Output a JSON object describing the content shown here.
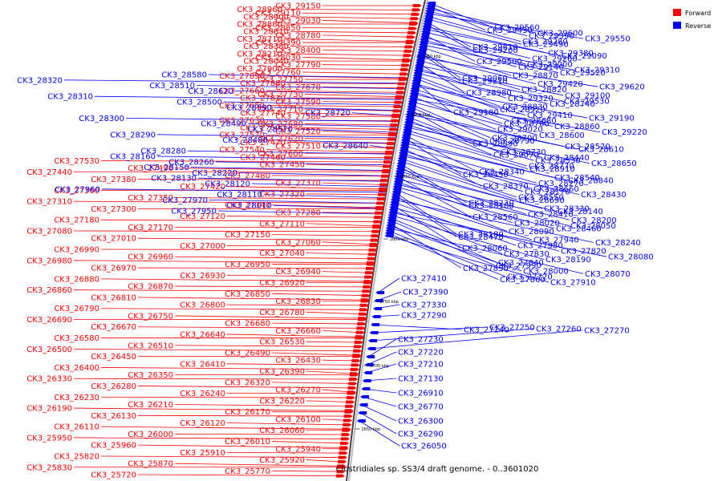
{
  "title": "Clostridiales sp. SS3/4 draft genome. - 0..3601020",
  "legend": {
    "forward": "Forward",
    "reverse": "Reverse"
  },
  "colors": {
    "forward": "#ff0000",
    "reverse": "#0000ff",
    "backbone": "#888888"
  },
  "ticks": [
    "2950 kbp",
    "2900 kbp",
    "2850 kbp",
    "2800 kbp",
    "2750 kbp",
    "2700 kbp",
    "2650 kbp"
  ],
  "forward_labels": [
    "CK3_29150",
    "CK3_28960",
    "CK3_29110",
    "CK3_28900",
    "CK3_29030",
    "CK3_28880",
    "CK3_28850",
    "CK3_28810",
    "CK3_28780",
    "CK3_28710",
    "CK3_28390",
    "CK3_28380",
    "CK3_28400",
    "CK3_28210",
    "CK3_28030",
    "CK3_28040",
    "CK3_27790",
    "CK3_27900",
    "CK3_27760",
    "CK3_27890",
    "CK3_27750",
    "CK3_27880",
    "CK3_27670",
    "CK3_27660",
    "CK3_27730",
    "CK3_27810",
    "CK3_27590",
    "CK3_27650",
    "CK3_27710",
    "CK3_27740",
    "CK3_27580",
    "CK3_27630",
    "CK3_27680",
    "CK3_27500",
    "CK3_27520",
    "CK3_27570",
    "CK3_27620",
    "CK3_27470",
    "CK3_27510",
    "CK3_27540",
    "CK3_27600",
    "CK3_27460",
    "CK3_27530",
    "CK3_27450",
    "CK3_27490",
    "CK3_27440",
    "CK3_27480",
    "CK3_27380",
    "CK3_27370",
    "CK3_27420",
    "CK3_27360",
    "CK3_27320",
    "CK3_27350",
    "CK3_27310",
    "CK3_27340",
    "CK3_27300",
    "CK3_27280",
    "CK3_27120",
    "CK3_27180",
    "CK3_27110",
    "CK3_27170",
    "CK3_27080",
    "CK3_27150",
    "CK3_27010",
    "CK3_27060",
    "CK3_27000",
    "CK3_26990",
    "CK3_27040",
    "CK3_26960",
    "CK3_26980",
    "CK3_26950",
    "CK3_26970",
    "CK3_26940",
    "CK3_26930",
    "CK3_26880",
    "CK3_26920",
    "CK3_26870",
    "CK3_26860",
    "CK3_26850",
    "CK3_26810",
    "CK3_26830",
    "CK3_26800",
    "CK3_26790",
    "CK3_26780",
    "CK3_26750",
    "CK3_26690",
    "CK3_26680",
    "CK3_26670",
    "CK3_26660",
    "CK3_26640",
    "CK3_26580",
    "CK3_26530",
    "CK3_26510",
    "CK3_26500",
    "CK3_26490",
    "CK3_26450",
    "CK3_26430",
    "CK3_26410",
    "CK3_26400",
    "CK3_26390",
    "CK3_26350",
    "CK3_26330",
    "CK3_26320",
    "CK3_26280",
    "CK3_26270",
    "CK3_26240",
    "CK3_26230",
    "CK3_26220",
    "CK3_26210",
    "CK3_26190",
    "CK3_26170",
    "CK3_26130",
    "CK3_26100",
    "CK3_26120",
    "CK3_26110",
    "CK3_26060",
    "CK3_26000",
    "CK3_25950",
    "CK3_26010",
    "CK3_25960",
    "CK3_25940",
    "CK3_25910",
    "CK3_25820",
    "CK3_25920",
    "CK3_25870",
    "CK3_25830",
    "CK3_25770",
    "CK3_25720"
  ],
  "reverse_labels": [
    "CK3_29560",
    "CK3_29430",
    "CK3_29600",
    "CK3_29390",
    "CK3_29550",
    "CK3_29280",
    "CK3_29490",
    "CK3_29610",
    "CK3_29200",
    "CK3_29380",
    "CK3_29090",
    "CK3_29260",
    "CK3_29500",
    "CK3_29000",
    "CK3_29140",
    "CK3_29310",
    "CK3_29520",
    "CK3_28870",
    "CK3_29060",
    "CK3_29210",
    "CK3_29420",
    "CK3_29620",
    "CK3_28820",
    "CK3_28980",
    "CK3_29100",
    "CK3_29320",
    "CK3_29530",
    "CK3_28740",
    "CK3_28830",
    "CK3_28920",
    "CK3_29180",
    "CK3_29410",
    "CK3_29190",
    "CK3_28680",
    "CK3_28760",
    "CK3_28860",
    "CK3_29020",
    "CK3_29220",
    "CK3_28600",
    "CK3_28700",
    "CK3_28790",
    "CK3_28890",
    "CK3_28520",
    "CK3_28610",
    "CK3_28730",
    "CK3_29070",
    "CK3_28440",
    "CK3_28530",
    "CK3_28650",
    "CK3_28770",
    "CK3_28910",
    "CK3_28340",
    "CK3_28450",
    "CK3_28540",
    "CK3_28840",
    "CK3_28270",
    "CK3_28370",
    "CK3_28660",
    "CK3_28170",
    "CK3_28430",
    "CK3_28550",
    "CK3_28690",
    "CK3_28230",
    "CK3_28100",
    "CK3_28330",
    "CK3_28140",
    "CK3_28410",
    "CK3_28560",
    "CK3_28200",
    "CK3_28020",
    "CK3_28050",
    "CK3_28460",
    "CK3_28090",
    "CK3_28180",
    "CK3_28470",
    "CK3_27940",
    "CK3_28240",
    "CK3_27980",
    "CK3_28060",
    "CK3_27820",
    "CK3_27830",
    "CK3_28080",
    "CK3_28190",
    "CK3_27840",
    "CK3_27990",
    "CK3_27850",
    "CK3_28000",
    "CK3_28070",
    "CK3_27720",
    "CK3_27860",
    "CK3_27910",
    "CK3_27410",
    "CK3_27390",
    "CK3_27330",
    "CK3_27290",
    "CK3_27240",
    "CK3_27250",
    "CK3_27260",
    "CK3_27270",
    "CK3_27230",
    "CK3_27220",
    "CK3_27210",
    "CK3_27130",
    "CK3_26910",
    "CK3_26770",
    "CK3_26300",
    "CK3_26290",
    "CK3_26050"
  ],
  "left_blue_labels": [
    "CK3_28580",
    "CK3_28320",
    "CK3_28510",
    "CK3_28620",
    "CK3_28310",
    "CK3_28500",
    "CK3_28590",
    "CK3_28720",
    "CK3_28300",
    "CK3_28490",
    "CK3_28570",
    "CK3_28290",
    "CK3_28480",
    "CK3_28640",
    "CK3_28280",
    "CK3_28160",
    "CK3_28260",
    "CK3_28150",
    "CK3_28220",
    "CK3_28130",
    "CK3_28120",
    "CK3_27960",
    "CK3_28110",
    "CK3_27970",
    "CK3_28010",
    "CK3_27950"
  ]
}
